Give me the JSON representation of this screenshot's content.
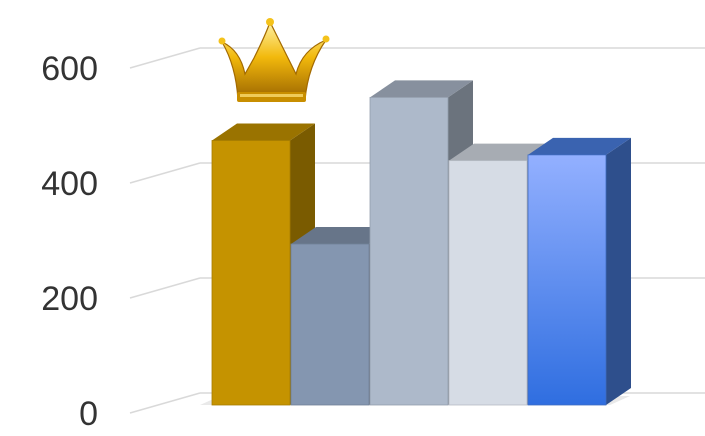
{
  "chart_data": {
    "type": "bar",
    "title": "",
    "xlabel": "",
    "ylabel": "",
    "ylim": [
      0,
      600
    ],
    "yticks": [
      0,
      200,
      400,
      600
    ],
    "grid": true,
    "style": "3d",
    "categories": [
      "",
      "",
      "",
      "",
      ""
    ],
    "values": [
      460,
      280,
      535,
      425,
      435
    ],
    "colors": [
      "#c59300",
      "#8496b0",
      "#adb9ca",
      "#d6dce5",
      "#4a7fe2"
    ],
    "highlight": {
      "index": 0,
      "icon": "crown-icon"
    }
  }
}
